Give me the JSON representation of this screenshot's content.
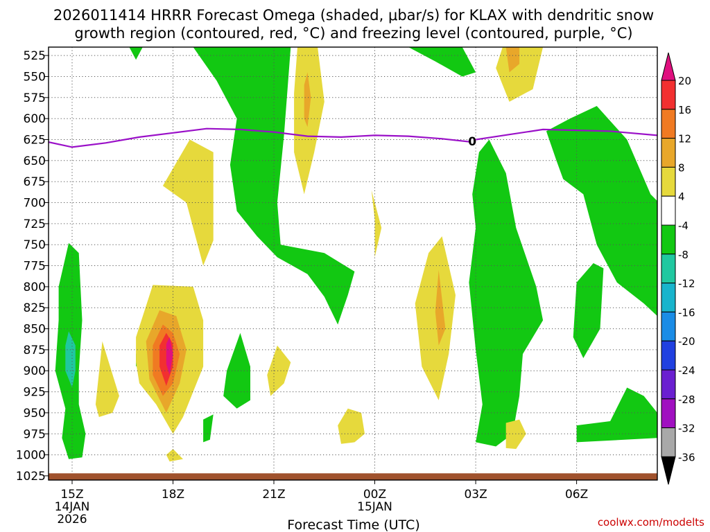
{
  "chart_data": {
    "type": "heatmap",
    "title_line1": "2026011414 HRRR Forecast Omega (shaded, μbar/s) for KLAX with dendritic snow",
    "title_line2": "growth region (contoured, red, °C) and freezing level (contoured, purple, °C)",
    "xlabel": "Forecast Time (UTC)",
    "credit": "coolwx.com/modelts",
    "x_range_hours": [
      -0.7,
      17.4
    ],
    "x_ticks": [
      {
        "h": 0,
        "label": "15Z",
        "sub1": "14JAN",
        "sub2": "2026"
      },
      {
        "h": 3,
        "label": "18Z",
        "sub1": "",
        "sub2": ""
      },
      {
        "h": 6,
        "label": "21Z",
        "sub1": "",
        "sub2": ""
      },
      {
        "h": 9,
        "label": "00Z",
        "sub1": "15JAN",
        "sub2": ""
      },
      {
        "h": 12,
        "label": "03Z",
        "sub1": "",
        "sub2": ""
      },
      {
        "h": 15,
        "label": "06Z",
        "sub1": "",
        "sub2": ""
      }
    ],
    "y_levels": [
      525,
      550,
      575,
      600,
      625,
      650,
      675,
      700,
      725,
      750,
      775,
      800,
      825,
      850,
      875,
      900,
      925,
      950,
      975,
      1000,
      1025
    ],
    "y_label_texts": [
      "525",
      "550",
      "575",
      "600",
      "625",
      "650",
      "675",
      "700",
      "725",
      "750",
      "775",
      "800",
      "825",
      "850",
      "875",
      "900",
      "925",
      "950",
      "975",
      "1000",
      "1025"
    ],
    "y_range_mb": [
      515,
      1030
    ],
    "colorbar": {
      "labels": [
        "20",
        "16",
        "12",
        "8",
        "4",
        "-4",
        "-8",
        "-12",
        "-16",
        "-20",
        "-24",
        "-28",
        "-32",
        "-36"
      ],
      "colors": [
        "#e0107f",
        "#f23030",
        "#f07a22",
        "#e8a72a",
        "#e6d93c",
        "#ffffff",
        "#12c812",
        "#20c8a0",
        "#18b4cc",
        "#1a8ce6",
        "#2040e0",
        "#6a1fd0",
        "#a010c0",
        "#a8a8a8",
        "#000000"
      ]
    },
    "freezing_level": {
      "label": "0",
      "color": "#9a10c8",
      "label_at": {
        "h": 11.9,
        "p": 628
      },
      "points": [
        {
          "h": -0.7,
          "p": 628
        },
        {
          "h": 0,
          "p": 634
        },
        {
          "h": 1,
          "p": 629
        },
        {
          "h": 2,
          "p": 622
        },
        {
          "h": 3,
          "p": 617
        },
        {
          "h": 4,
          "p": 612
        },
        {
          "h": 5,
          "p": 613
        },
        {
          "h": 6,
          "p": 616
        },
        {
          "h": 7,
          "p": 621
        },
        {
          "h": 8,
          "p": 622
        },
        {
          "h": 9,
          "p": 620
        },
        {
          "h": 10,
          "p": 621
        },
        {
          "h": 11,
          "p": 624
        },
        {
          "h": 11.9,
          "p": 628
        },
        {
          "h": 12,
          "p": 625
        },
        {
          "h": 13,
          "p": 619
        },
        {
          "h": 14,
          "p": 613
        },
        {
          "h": 15,
          "p": 614
        },
        {
          "h": 16,
          "p": 615
        },
        {
          "h": 17.4,
          "p": 620
        }
      ]
    },
    "ground_level_mb": 1022,
    "omega_regions": [
      {
        "range": "-8 to -4",
        "color": "#12c812",
        "pts": [
          [
            3.6,
            515
          ],
          [
            6.5,
            515
          ],
          [
            6.3,
            620
          ],
          [
            6.1,
            700
          ],
          [
            6.2,
            750
          ],
          [
            7.5,
            760
          ],
          [
            8.4,
            782
          ],
          [
            8.2,
            810
          ],
          [
            7.9,
            845
          ],
          [
            7.5,
            812
          ],
          [
            7.0,
            785
          ],
          [
            6.1,
            765
          ],
          [
            5.5,
            740
          ],
          [
            4.9,
            710
          ],
          [
            4.7,
            655
          ],
          [
            4.9,
            600
          ],
          [
            4.3,
            555
          ]
        ]
      },
      {
        "range": "-8 to -4",
        "color": "#12c812",
        "pts": [
          [
            10.0,
            515
          ],
          [
            11.6,
            515
          ],
          [
            12.0,
            545
          ],
          [
            11.6,
            550
          ],
          [
            10.8,
            532
          ]
        ]
      },
      {
        "range": "-8 to -4",
        "color": "#12c812",
        "pts": [
          [
            14.1,
            615
          ],
          [
            14.8,
            600
          ],
          [
            15.6,
            585
          ],
          [
            16.5,
            625
          ],
          [
            17.2,
            690
          ],
          [
            17.4,
            698
          ],
          [
            17.4,
            835
          ],
          [
            17.0,
            820
          ],
          [
            16.2,
            795
          ],
          [
            15.6,
            750
          ],
          [
            15.2,
            690
          ],
          [
            14.6,
            672
          ],
          [
            14.4,
            650
          ]
        ]
      },
      {
        "range": "-8 to -4",
        "color": "#12c812",
        "pts": [
          [
            12.1,
            640
          ],
          [
            12.4,
            625
          ],
          [
            12.9,
            665
          ],
          [
            13.2,
            730
          ],
          [
            13.8,
            800
          ],
          [
            14.0,
            840
          ],
          [
            13.4,
            880
          ],
          [
            13.3,
            930
          ],
          [
            13.1,
            975
          ],
          [
            12.6,
            990
          ],
          [
            12.0,
            985
          ],
          [
            12.2,
            940
          ],
          [
            12.0,
            875
          ],
          [
            11.8,
            795
          ],
          [
            12.0,
            730
          ],
          [
            11.9,
            690
          ]
        ]
      },
      {
        "range": "-8 to -4",
        "color": "#12c812",
        "pts": [
          [
            -0.4,
            800
          ],
          [
            -0.1,
            748
          ],
          [
            0.2,
            760
          ],
          [
            0.3,
            840
          ],
          [
            0.2,
            900
          ],
          [
            0.2,
            940
          ],
          [
            0.4,
            975
          ],
          [
            0.3,
            1003
          ],
          [
            -0.1,
            1005
          ],
          [
            -0.3,
            980
          ],
          [
            -0.2,
            945
          ],
          [
            -0.5,
            900
          ],
          [
            -0.4,
            840
          ]
        ]
      },
      {
        "range": "-12 to -8",
        "color": "#20c8a0",
        "pts": [
          [
            -0.1,
            853
          ],
          [
            0.1,
            870
          ],
          [
            0.1,
            900
          ],
          [
            0.0,
            920
          ],
          [
            -0.2,
            900
          ],
          [
            -0.2,
            870
          ]
        ]
      },
      {
        "range": "-8 to -4",
        "color": "#12c812",
        "pts": [
          [
            4.6,
            900
          ],
          [
            5.0,
            855
          ],
          [
            5.3,
            895
          ],
          [
            5.3,
            935
          ],
          [
            4.9,
            945
          ],
          [
            4.5,
            930
          ]
        ]
      },
      {
        "range": "-8 to -4",
        "color": "#12c812",
        "pts": [
          [
            3.9,
            958
          ],
          [
            4.2,
            952
          ],
          [
            4.1,
            982
          ],
          [
            3.9,
            985
          ]
        ]
      },
      {
        "range": "-8 to -4",
        "color": "#12c812",
        "pts": [
          [
            15.0,
            795
          ],
          [
            15.5,
            772
          ],
          [
            15.8,
            778
          ],
          [
            15.7,
            850
          ],
          [
            15.2,
            885
          ],
          [
            14.9,
            860
          ]
        ]
      },
      {
        "range": "-8 to -4",
        "color": "#12c812",
        "pts": [
          [
            15.0,
            965
          ],
          [
            16.0,
            960
          ],
          [
            16.5,
            920
          ],
          [
            17.0,
            930
          ],
          [
            17.4,
            950
          ],
          [
            17.4,
            980
          ],
          [
            15.0,
            985
          ]
        ]
      },
      {
        "range": "-8 to -4",
        "color": "#12c812",
        "pts": [
          [
            1.9,
            880
          ],
          [
            2.0,
            872
          ],
          [
            2.0,
            890
          ],
          [
            1.9,
            895
          ]
        ]
      },
      {
        "range": "-8 to -4",
        "color": "#12c812",
        "pts": [
          [
            1.7,
            515
          ],
          [
            2.1,
            515
          ],
          [
            1.9,
            530
          ]
        ]
      },
      {
        "range": "4 to 8",
        "color": "#e6d93c",
        "pts": [
          [
            6.7,
            515
          ],
          [
            7.3,
            515
          ],
          [
            7.5,
            580
          ],
          [
            7.2,
            640
          ],
          [
            6.9,
            690
          ],
          [
            6.6,
            640
          ],
          [
            6.6,
            570
          ]
        ]
      },
      {
        "range": "8 to 12",
        "color": "#e8a72a",
        "pts": [
          [
            6.9,
            560
          ],
          [
            7.0,
            545
          ],
          [
            7.1,
            575
          ],
          [
            7.0,
            610
          ],
          [
            6.9,
            600
          ]
        ]
      },
      {
        "range": "4 to 8",
        "color": "#e6d93c",
        "pts": [
          [
            2.7,
            680
          ],
          [
            3.5,
            625
          ],
          [
            4.2,
            640
          ],
          [
            4.2,
            745
          ],
          [
            3.9,
            775
          ],
          [
            3.4,
            700
          ]
        ]
      },
      {
        "range": "4 to 8",
        "color": "#e6d93c",
        "pts": [
          [
            12.8,
            515
          ],
          [
            14.0,
            515
          ],
          [
            13.7,
            565
          ],
          [
            13.0,
            580
          ],
          [
            12.6,
            540
          ]
        ]
      },
      {
        "range": "8 to 12",
        "color": "#e8a72a",
        "pts": [
          [
            12.9,
            515
          ],
          [
            13.3,
            515
          ],
          [
            13.3,
            535
          ],
          [
            13.0,
            545
          ]
        ]
      },
      {
        "range": "4 to 8",
        "color": "#e6d93c",
        "pts": [
          [
            1.9,
            860
          ],
          [
            2.4,
            798
          ],
          [
            3.6,
            800
          ],
          [
            3.9,
            840
          ],
          [
            3.9,
            895
          ],
          [
            3.3,
            955
          ],
          [
            3.0,
            975
          ],
          [
            2.5,
            940
          ],
          [
            2.0,
            915
          ],
          [
            1.9,
            890
          ]
        ]
      },
      {
        "range": "8 to 12",
        "color": "#e8a72a",
        "pts": [
          [
            2.2,
            865
          ],
          [
            2.6,
            828
          ],
          [
            3.1,
            835
          ],
          [
            3.4,
            875
          ],
          [
            3.2,
            915
          ],
          [
            2.8,
            950
          ],
          [
            2.3,
            910
          ]
        ]
      },
      {
        "range": "12 to 16",
        "color": "#f07a22",
        "pts": [
          [
            2.4,
            870
          ],
          [
            2.7,
            845
          ],
          [
            3.0,
            855
          ],
          [
            3.2,
            880
          ],
          [
            3.0,
            915
          ],
          [
            2.7,
            930
          ],
          [
            2.4,
            905
          ]
        ]
      },
      {
        "range": "16 to 20",
        "color": "#f23030",
        "pts": [
          [
            2.6,
            870
          ],
          [
            2.8,
            855
          ],
          [
            3.0,
            868
          ],
          [
            3.0,
            895
          ],
          [
            2.8,
            918
          ],
          [
            2.6,
            895
          ]
        ]
      },
      {
        "range": "> 20",
        "color": "#e0107f",
        "pts": [
          [
            2.8,
            868
          ],
          [
            2.9,
            860
          ],
          [
            3.0,
            880
          ],
          [
            2.9,
            905
          ],
          [
            2.8,
            892
          ]
        ]
      },
      {
        "range": "4 to 8",
        "color": "#e6d93c",
        "pts": [
          [
            0.7,
            940
          ],
          [
            0.9,
            865
          ],
          [
            1.4,
            930
          ],
          [
            1.2,
            950
          ],
          [
            0.8,
            955
          ]
        ]
      },
      {
        "range": "4 to 8",
        "color": "#e6d93c",
        "pts": [
          [
            5.8,
            905
          ],
          [
            6.1,
            870
          ],
          [
            6.5,
            890
          ],
          [
            6.3,
            915
          ],
          [
            5.9,
            930
          ]
        ]
      },
      {
        "range": "4 to 8",
        "color": "#e6d93c",
        "pts": [
          [
            7.9,
            965
          ],
          [
            8.2,
            945
          ],
          [
            8.6,
            950
          ],
          [
            8.7,
            975
          ],
          [
            8.4,
            985
          ],
          [
            8.0,
            987
          ]
        ]
      },
      {
        "range": "4 to 8",
        "color": "#e6d93c",
        "pts": [
          [
            9.0,
            720
          ],
          [
            8.9,
            685
          ],
          [
            9.2,
            730
          ],
          [
            9.0,
            765
          ]
        ]
      },
      {
        "range": "4 to 8",
        "color": "#e6d93c",
        "pts": [
          [
            10.2,
            820
          ],
          [
            10.6,
            760
          ],
          [
            11.0,
            740
          ],
          [
            11.4,
            810
          ],
          [
            11.2,
            880
          ],
          [
            10.9,
            935
          ],
          [
            10.4,
            895
          ]
        ]
      },
      {
        "range": "8 to 12",
        "color": "#e8a72a",
        "pts": [
          [
            10.9,
            780
          ],
          [
            11.1,
            850
          ],
          [
            10.9,
            870
          ],
          [
            10.8,
            830
          ]
        ]
      },
      {
        "range": "4 to 8",
        "color": "#e6d93c",
        "pts": [
          [
            12.9,
            962
          ],
          [
            13.3,
            958
          ],
          [
            13.5,
            975
          ],
          [
            13.2,
            993
          ],
          [
            12.9,
            992
          ]
        ]
      },
      {
        "range": "4 to 8",
        "color": "#e6d93c",
        "pts": [
          [
            2.8,
            1000
          ],
          [
            3.0,
            993
          ],
          [
            3.3,
            1005
          ],
          [
            2.9,
            1008
          ]
        ]
      }
    ]
  }
}
